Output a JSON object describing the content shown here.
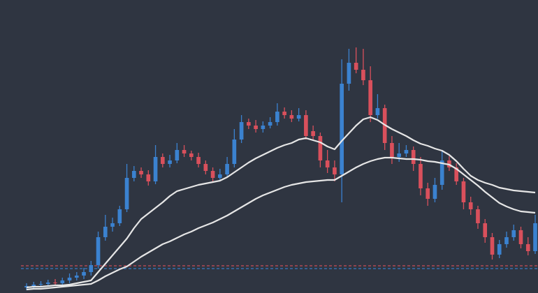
{
  "chart_data": {
    "type": "candlestick",
    "ylim": [
      0,
      420
    ],
    "up_color": "#3b82d0",
    "down_color": "#d9505c",
    "open": [
      8,
      10,
      12,
      13,
      15,
      14,
      18,
      22,
      25,
      30,
      40,
      80,
      95,
      100,
      120,
      165,
      175,
      170,
      160,
      195,
      185,
      190,
      205,
      200,
      195,
      185,
      175,
      165,
      170,
      185,
      220,
      245,
      240,
      235,
      240,
      245,
      260,
      255,
      250,
      255,
      232,
      225,
      190,
      180,
      170,
      300,
      330,
      320,
      305,
      255,
      265,
      215,
      195,
      200,
      205,
      185,
      150,
      135,
      155,
      190,
      180,
      160,
      130,
      120,
      100,
      80,
      55,
      70,
      80,
      90,
      70,
      60
    ],
    "high": [
      14,
      16,
      17,
      19,
      20,
      22,
      28,
      30,
      36,
      46,
      88,
      112,
      108,
      125,
      185,
      182,
      180,
      176,
      212,
      200,
      198,
      215,
      212,
      204,
      201,
      190,
      180,
      178,
      195,
      235,
      255,
      250,
      248,
      246,
      252,
      272,
      266,
      262,
      265,
      262,
      240,
      230,
      205,
      190,
      335,
      350,
      352,
      350,
      325,
      285,
      270,
      225,
      215,
      212,
      210,
      195,
      158,
      165,
      205,
      196,
      186,
      165,
      138,
      125,
      106,
      86,
      76,
      88,
      98,
      95,
      80,
      112
    ],
    "low": [
      4,
      6,
      8,
      9,
      10,
      10,
      14,
      18,
      20,
      25,
      35,
      75,
      88,
      96,
      116,
      160,
      165,
      154,
      156,
      180,
      180,
      186,
      195,
      190,
      180,
      170,
      158,
      160,
      166,
      180,
      215,
      235,
      230,
      230,
      236,
      240,
      250,
      245,
      246,
      220,
      218,
      180,
      172,
      160,
      130,
      290,
      315,
      298,
      245,
      250,
      205,
      185,
      188,
      195,
      175,
      140,
      125,
      130,
      148,
      175,
      155,
      120,
      112,
      92,
      72,
      48,
      50,
      65,
      75,
      64,
      54,
      56
    ],
    "close": [
      10,
      12,
      13,
      15,
      14,
      18,
      22,
      25,
      30,
      40,
      80,
      95,
      100,
      120,
      165,
      175,
      170,
      160,
      195,
      185,
      190,
      205,
      200,
      195,
      185,
      175,
      165,
      170,
      185,
      220,
      245,
      240,
      235,
      240,
      245,
      260,
      255,
      250,
      255,
      225,
      225,
      190,
      180,
      170,
      300,
      330,
      320,
      305,
      255,
      265,
      215,
      195,
      200,
      205,
      185,
      150,
      135,
      155,
      190,
      180,
      160,
      130,
      120,
      100,
      80,
      55,
      70,
      80,
      90,
      70,
      60,
      100
    ],
    "series": [
      {
        "color": "#e6e6e6",
        "values": [
          8,
          9,
          9,
          10,
          11,
          11,
          12,
          14,
          16,
          18,
          30,
          42,
          54,
          66,
          78,
          93,
          106,
          114,
          122,
          130,
          139,
          146,
          149,
          152,
          155,
          157,
          159,
          161,
          166,
          173,
          180,
          187,
          193,
          198,
          203,
          208,
          212,
          215,
          220,
          222,
          219,
          216,
          210,
          206,
          218,
          229,
          240,
          249,
          252,
          248,
          241,
          235,
          230,
          225,
          219,
          214,
          211,
          207,
          204,
          198,
          189,
          178,
          168,
          162,
          158,
          155,
          151,
          149,
          147,
          146,
          145,
          144
        ]
      },
      {
        "color": "#e6e6e6",
        "values": [
          5,
          6,
          6,
          7,
          8,
          9,
          10,
          11,
          12,
          13,
          18,
          24,
          29,
          34,
          38,
          45,
          52,
          58,
          64,
          70,
          74,
          79,
          84,
          88,
          93,
          97,
          101,
          106,
          111,
          117,
          123,
          129,
          135,
          140,
          144,
          148,
          152,
          155,
          157,
          159,
          160,
          161,
          162,
          162,
          168,
          174,
          180,
          185,
          189,
          192,
          194,
          194,
          193,
          192,
          192,
          191,
          189,
          188,
          186,
          184,
          178,
          170,
          162,
          154,
          145,
          137,
          129,
          124,
          120,
          117,
          116,
          115
        ]
      }
    ],
    "hlines": [
      {
        "value": 39,
        "color": "#d9505c"
      },
      {
        "value": 35,
        "color": "#3b82d0"
      }
    ]
  }
}
